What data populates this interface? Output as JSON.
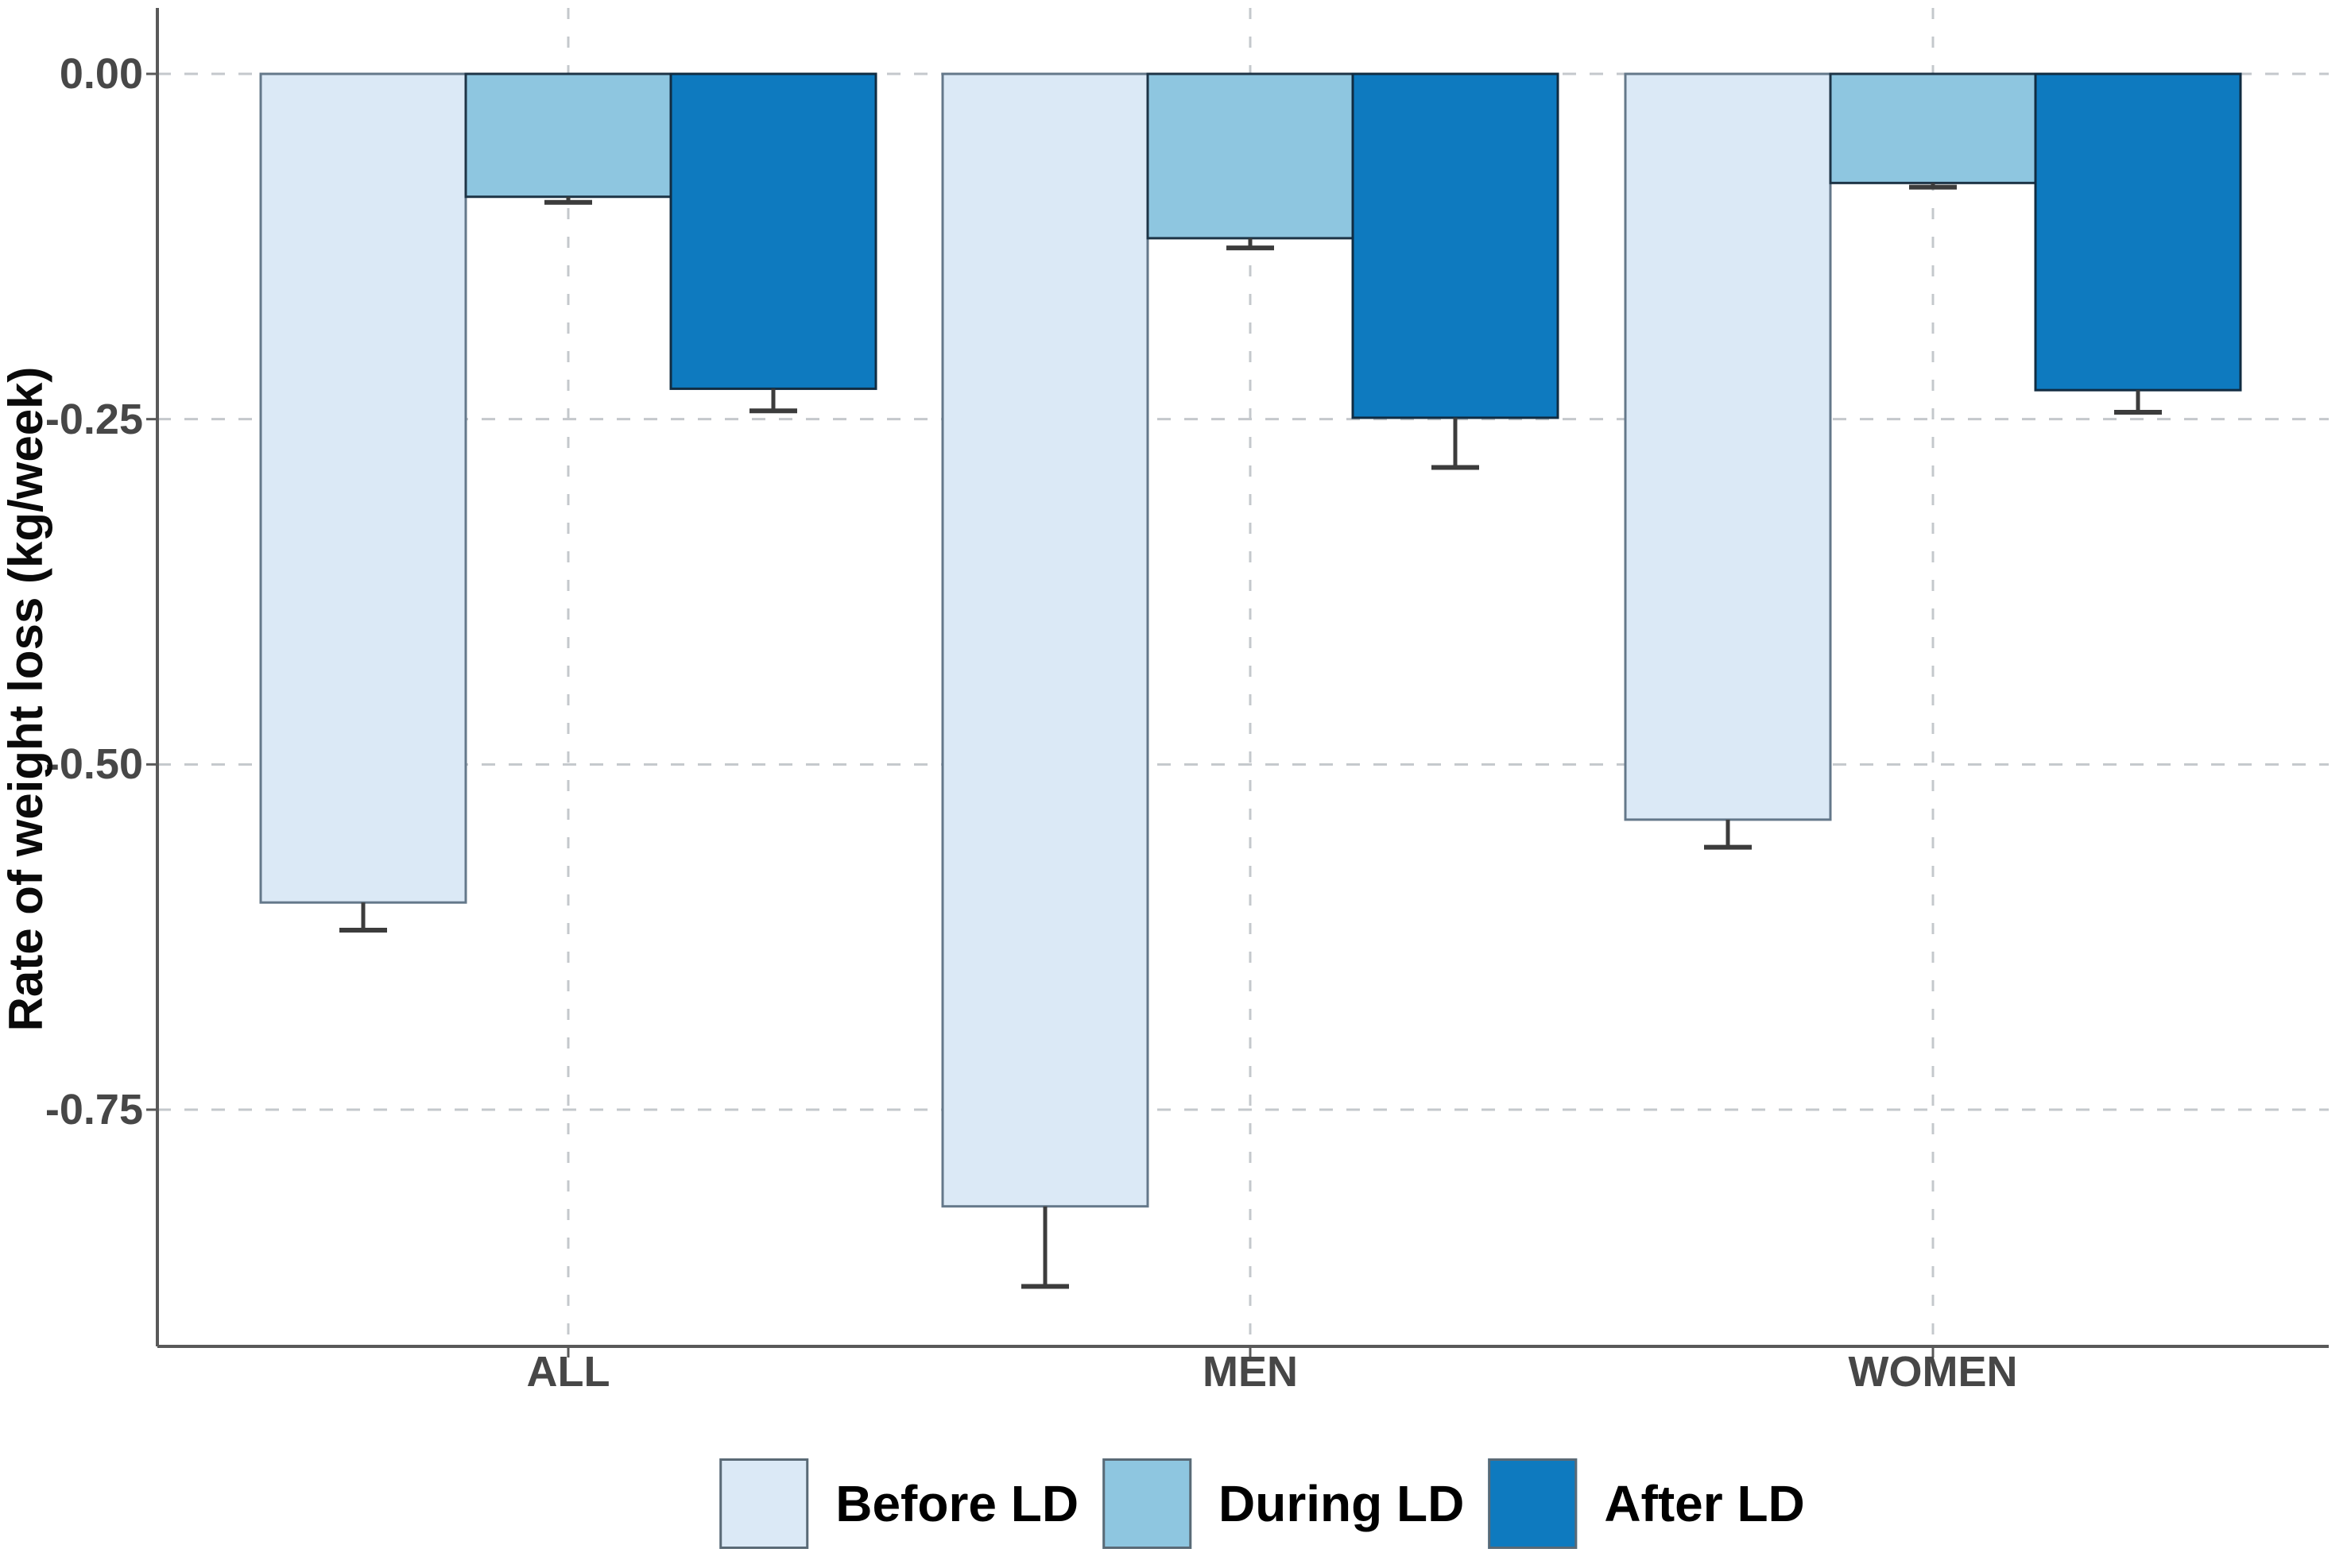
{
  "figure": {
    "background": "#ffffff",
    "axis_color": "#595959",
    "grid_color": "#c4c8cc",
    "errorbar_color": "#3c3c3c",
    "tick_label_color": "#474747"
  },
  "chart_data": {
    "type": "bar",
    "orientation": "vertical",
    "title": "",
    "xlabel": "",
    "ylabel": "Rate of weight loss (kg/week)",
    "categories": [
      "ALL",
      "MEN",
      "WOMEN"
    ],
    "series": [
      {
        "name": "Before LD",
        "color": "#dbe9f6",
        "edge": "#64788a",
        "values": [
          -0.6,
          -0.82,
          -0.54
        ],
        "errors": [
          0.02,
          0.058,
          0.02
        ]
      },
      {
        "name": "During LD",
        "color": "#8ec6e0",
        "edge": "#1d3446",
        "values": [
          -0.089,
          -0.119,
          -0.079
        ],
        "errors": [
          0.004,
          0.007,
          0.003
        ]
      },
      {
        "name": "After LD",
        "color": "#0e7abf",
        "edge": "#102c42",
        "values": [
          -0.228,
          -0.249,
          -0.229
        ],
        "errors": [
          0.016,
          0.036,
          0.016
        ]
      }
    ],
    "yticks": [
      0,
      -0.25,
      -0.5,
      -0.75
    ],
    "ytick_labels": [
      "0.00",
      "-0.25",
      "-0.50",
      "-0.75"
    ],
    "ylim": [
      0.048,
      -0.922
    ],
    "grid": "dashed, horizontal at yticks and vertical at category centers",
    "legend_position": "bottom center",
    "error_bars": "downward only, capped"
  }
}
